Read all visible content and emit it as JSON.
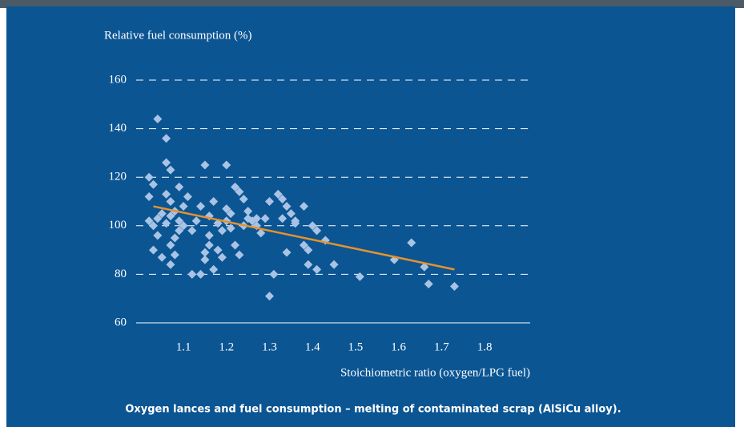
{
  "chart_data": {
    "type": "scatter",
    "title": "Relative fuel consumption (%)",
    "x_label": "Stoichiometric ratio (oxygen/LPG fuel)",
    "caption": "Oxygen lances and fuel consumption – melting of contaminated scrap (AlSiCu alloy).",
    "color": "#a9c3e4",
    "x": [
      1.04,
      1.06,
      1.06,
      1.07,
      1.09,
      1.02,
      1.03,
      1.02,
      1.05,
      1.04,
      1.02,
      1.03,
      1.04,
      1.03,
      1.05,
      1.07,
      1.08,
      1.07,
      1.08,
      1.09,
      1.06,
      1.07,
      1.08,
      1.1,
      1.11,
      1.06,
      1.07,
      1.09,
      1.1,
      1.12,
      1.14,
      1.12,
      1.14,
      1.15,
      1.15,
      1.16,
      1.15,
      1.2,
      1.17,
      1.16,
      1.17,
      1.18,
      1.19,
      1.19,
      1.2,
      1.21,
      1.2,
      1.21,
      1.22,
      1.23,
      1.22,
      1.23,
      1.24,
      1.25,
      1.24,
      1.26,
      1.27,
      1.28,
      1.29,
      1.3,
      1.3,
      1.31,
      1.32,
      1.33,
      1.34,
      1.35,
      1.33,
      1.34,
      1.36,
      1.36,
      1.38,
      1.38,
      1.39,
      1.39,
      1.4,
      1.41,
      1.41,
      1.43,
      1.45,
      1.51,
      1.59,
      1.63,
      1.66,
      1.67,
      1.73,
      1.18,
      1.25,
      1.16,
      1.13,
      1.27
    ],
    "values": [
      144,
      136,
      126,
      123,
      116,
      120,
      117,
      112,
      105,
      103,
      102,
      100,
      96,
      90,
      87,
      84,
      88,
      92,
      95,
      98,
      101,
      104,
      106,
      108,
      112,
      113,
      110,
      102,
      100,
      98,
      108,
      80,
      80,
      86,
      89,
      92,
      125,
      125,
      110,
      104,
      82,
      90,
      87,
      98,
      102,
      105,
      107,
      99,
      92,
      88,
      116,
      114,
      111,
      106,
      100,
      102,
      103,
      97,
      103,
      110,
      71,
      80,
      113,
      111,
      108,
      105,
      103,
      89,
      102,
      101,
      108,
      92,
      90,
      84,
      100,
      98,
      82,
      94,
      84,
      79,
      86,
      93,
      83,
      76,
      75,
      101,
      103,
      96,
      102,
      100
    ],
    "trendline": {
      "x": [
        1.03,
        1.73
      ],
      "values": [
        108,
        82
      ],
      "color": "#e8922a"
    },
    "xlim": [
      0.99,
      1.906
    ],
    "ylim": [
      60,
      160
    ],
    "xticks": [
      1.1,
      1.2,
      1.3,
      1.4,
      1.5,
      1.6,
      1.7,
      1.8
    ],
    "yticks": [
      60,
      80,
      100,
      120,
      140,
      160
    ],
    "grid": true
  }
}
